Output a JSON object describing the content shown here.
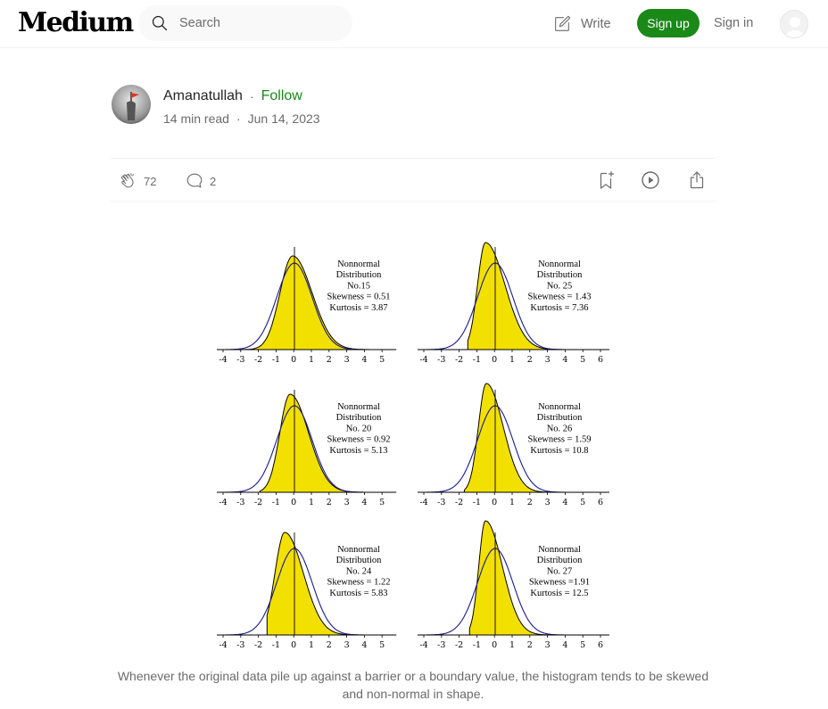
{
  "header": {
    "logo": "Medium",
    "search_placeholder": "Search",
    "write_label": "Write",
    "signup_label": "Sign up",
    "signin_label": "Sign in"
  },
  "article": {
    "author": "Amanatullah",
    "follow_label": "Follow",
    "read_time": "14 min read",
    "date": "Jun 14, 2023",
    "claps": "72",
    "responses": "2"
  },
  "figure": {
    "panels": [
      {
        "lines": [
          "Nonnormal",
          "Distribution",
          "No.15",
          "Skewness = 0.51",
          "Kurtosis = 3.87"
        ],
        "ticks": [
          "-4",
          "-3",
          "-2",
          "-1",
          "0",
          "1",
          "2",
          "3",
          "4",
          "5"
        ]
      },
      {
        "lines": [
          "Nonnormal",
          "Distribution",
          "No. 25",
          "Skewness = 1.43",
          "Kurtosis = 7.36"
        ],
        "ticks": [
          "-4",
          "-3",
          "-2",
          "-1",
          "0",
          "1",
          "2",
          "3",
          "4",
          "5",
          "6"
        ]
      },
      {
        "lines": [
          "Nonnormal",
          "Distribution",
          "No. 20",
          "Skewness = 0.92",
          "Kurtosis = 5.13"
        ],
        "ticks": [
          "-4",
          "-3",
          "-2",
          "-1",
          "0",
          "1",
          "2",
          "3",
          "4",
          "5"
        ]
      },
      {
        "lines": [
          "Nonnormal",
          "Distribution",
          "No. 26",
          "Skewness = 1.59",
          "Kurtosis = 10.8"
        ],
        "ticks": [
          "-4",
          "-3",
          "-2",
          "-1",
          "0",
          "1",
          "2",
          "3",
          "4",
          "5",
          "6"
        ]
      },
      {
        "lines": [
          "Nonnormal",
          "Distribution",
          "No. 24",
          "Skewness = 1.22",
          "Kurtosis = 5.83"
        ],
        "ticks": [
          "-4",
          "-3",
          "-2",
          "-1",
          "0",
          "1",
          "2",
          "3",
          "4",
          "5"
        ]
      },
      {
        "lines": [
          "Nonnormal",
          "Distribution",
          "No. 27",
          "Skewness =1.91",
          "Kurtosis = 12.5"
        ],
        "ticks": [
          "-4",
          "-3",
          "-2",
          "-1",
          "0",
          "1",
          "2",
          "3",
          "4",
          "5",
          "6"
        ]
      }
    ],
    "caption": "Whenever the original data pile up against a barrier or a boundary value, the histogram tends to be skewed and non-normal in shape."
  },
  "colors": {
    "brand_green": "#1a8917",
    "fill_yellow": "#f2e000",
    "normal_curve": "#1a1a8c"
  },
  "icons": [
    "search-icon",
    "write-icon",
    "user-icon",
    "clap-icon",
    "comment-icon",
    "bookmark-add-icon",
    "play-icon",
    "share-icon"
  ]
}
